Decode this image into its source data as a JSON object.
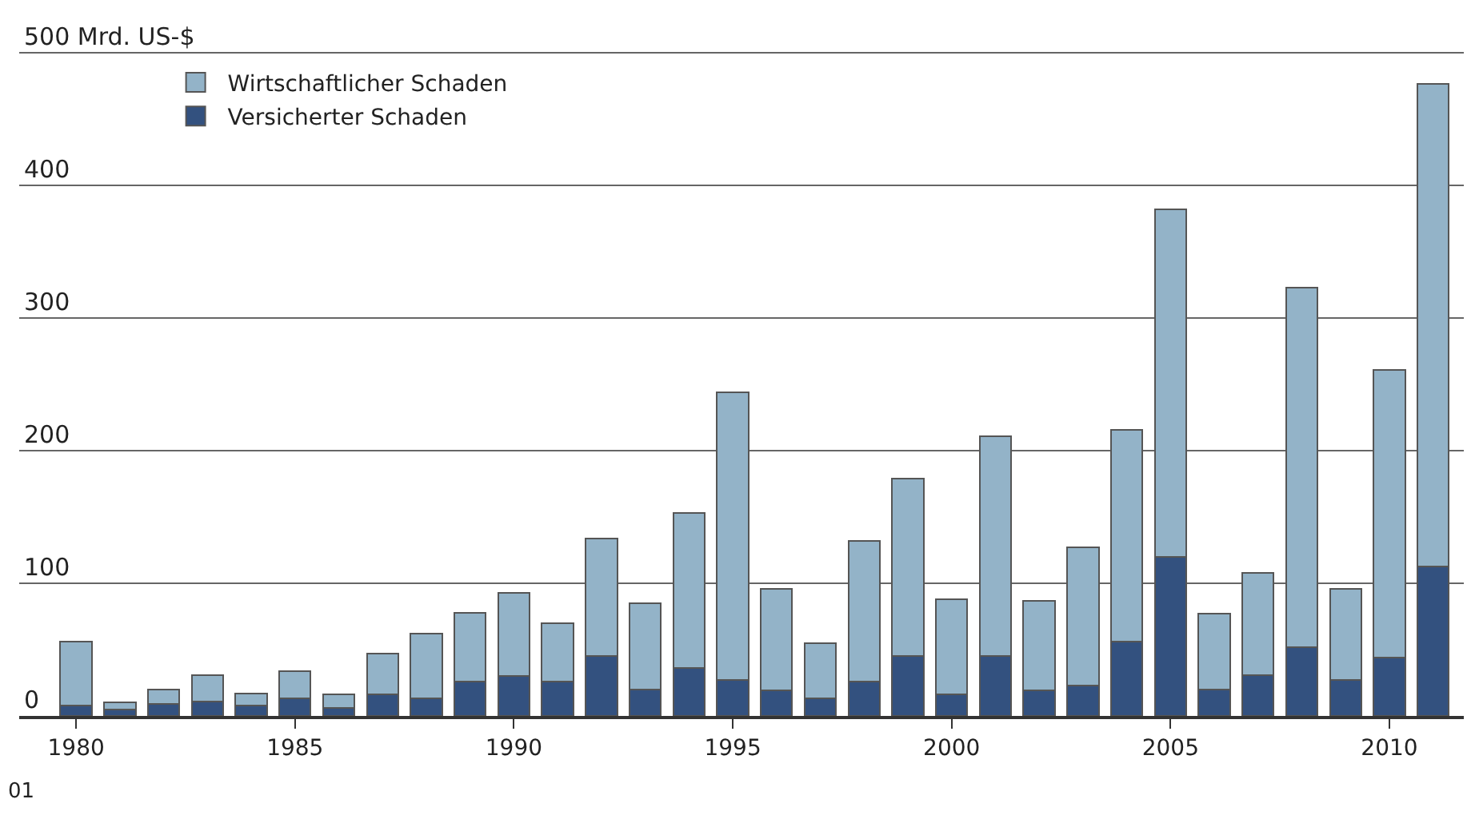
{
  "chart_data": {
    "type": "bar",
    "stacked": true,
    "x": [
      1980,
      1981,
      1982,
      1983,
      1984,
      1985,
      1986,
      1987,
      1988,
      1989,
      1990,
      1991,
      1992,
      1993,
      1994,
      1995,
      1996,
      1997,
      1998,
      1999,
      2000,
      2001,
      2002,
      2003,
      2004,
      2005,
      2006,
      2007,
      2008,
      2009,
      2010,
      2011
    ],
    "series": [
      {
        "name": "Versicherter Schaden",
        "color": "#33517f",
        "values": [
          8,
          5,
          9,
          11,
          8,
          13,
          6,
          16,
          13,
          26,
          30,
          26,
          45,
          20,
          36,
          27,
          19,
          13,
          26,
          45,
          16,
          45,
          19,
          23,
          56,
          120,
          20,
          31,
          52,
          27,
          44,
          113
        ]
      },
      {
        "name": "Wirtschaftlicher Schaden",
        "color": "#93b3c8",
        "values": [
          48,
          5,
          11,
          20,
          9,
          21,
          10,
          31,
          49,
          52,
          63,
          44,
          89,
          65,
          117,
          217,
          77,
          42,
          106,
          134,
          72,
          166,
          68,
          104,
          160,
          262,
          57,
          77,
          271,
          69,
          217,
          364
        ]
      }
    ],
    "xlim": [
      1978.7,
      2011.7
    ],
    "xticks": [
      1980,
      1985,
      1990,
      1995,
      2000,
      2005,
      2010
    ],
    "ylim": [
      0,
      540
    ],
    "yticks": [
      0,
      100,
      200,
      300,
      400,
      {
        "value": 500,
        "label": "500 Mrd. US-$"
      }
    ],
    "grid": "y",
    "legend": "top left",
    "annotations": [
      "01"
    ]
  }
}
